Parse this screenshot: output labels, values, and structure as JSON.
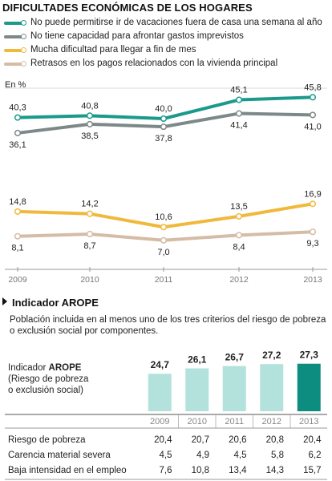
{
  "title": "DIFICULTADES ECONÓMICAS DE LOS HOGARES",
  "unit_label": "En %",
  "colors": {
    "teal": "#1b9a8c",
    "gray": "#7d8888",
    "yellow": "#f0b93c",
    "beige": "#d4bca6",
    "bar_light": "#b3e2dc",
    "bar_dark": "#0d8c80"
  },
  "arope_section": {
    "title": "Indicador AROPE",
    "description": "Población incluida en al menos uno de los tres criterios del riesgo de pobreza o exclusión social por componentes.",
    "indicator_label_bold": "AROPE",
    "indicator_label_prefix": "Indicador",
    "indicator_label_line2": "(Riesgo de pobreza",
    "indicator_label_line3": "o exclusión social)"
  },
  "chart_data": [
    {
      "type": "line",
      "title": "DIFICULTADES ECONÓMICAS DE LOS HOGARES",
      "ylabel": "En %",
      "x": [
        "2009",
        "2010",
        "2011",
        "2012",
        "2013"
      ],
      "ylim": [
        0,
        50
      ],
      "legend": "top",
      "series": [
        {
          "name": "No puede permitirse ir de vacaciones fuera de casa una semana al año",
          "color": "#1b9a8c",
          "values": [
            40.3,
            40.8,
            40.0,
            45.1,
            45.8
          ],
          "labels": [
            "40,3",
            "40,8",
            "40,0",
            "45,1",
            "45,8"
          ]
        },
        {
          "name": "No tiene capacidad para afrontar gastos imprevistos",
          "color": "#7d8888",
          "values": [
            36.1,
            38.5,
            37.8,
            41.4,
            41.0
          ],
          "labels": [
            "36,1",
            "38,5",
            "37,8",
            "41,4",
            "41,0"
          ]
        },
        {
          "name": "Mucha dificultad para llegar a fin de mes",
          "color": "#f0b93c",
          "values": [
            14.8,
            14.2,
            10.6,
            13.5,
            16.9
          ],
          "labels": [
            "14,8",
            "14,2",
            "10,6",
            "13,5",
            "16,9"
          ]
        },
        {
          "name": "Retrasos en los pagos relacionados con la vivienda principal",
          "color": "#d4bca6",
          "values": [
            8.1,
            8.7,
            7.0,
            8.4,
            9.3
          ],
          "labels": [
            "8,1",
            "8,7",
            "7,0",
            "8,4",
            "9,3"
          ]
        }
      ]
    },
    {
      "type": "bar",
      "title": "Indicador AROPE",
      "categories": [
        "2009",
        "2010",
        "2011",
        "2012",
        "2013"
      ],
      "values": [
        24.7,
        26.1,
        26.7,
        27.2,
        27.3
      ],
      "labels": [
        "24,7",
        "26,1",
        "26,7",
        "27,2",
        "27,3"
      ],
      "highlight_index": 4
    },
    {
      "type": "table",
      "rows": [
        {
          "label": "Riesgo de pobreza",
          "values": [
            "20,4",
            "20,7",
            "20,6",
            "20,8",
            "20,4"
          ]
        },
        {
          "label": "Carencia material severa",
          "values": [
            "4,5",
            "4,9",
            "4,5",
            "5,8",
            "6,2"
          ]
        },
        {
          "label": "Baja intensidad en el empleo",
          "values": [
            "7,6",
            "10,8",
            "13,4",
            "14,3",
            "15,7"
          ]
        }
      ]
    }
  ]
}
